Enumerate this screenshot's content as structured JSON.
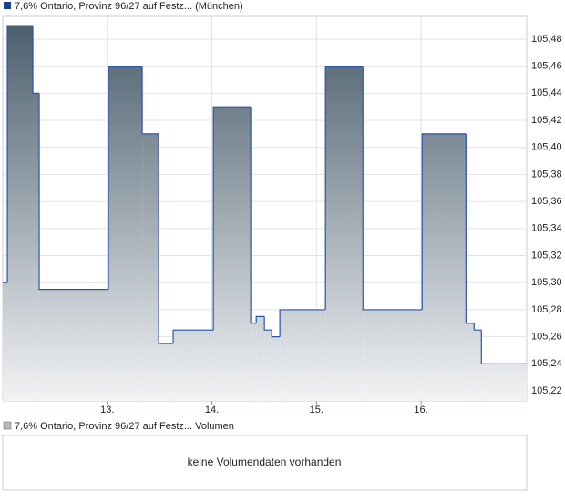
{
  "chart_data": {
    "type": "step-area",
    "legend": "7,6% Ontario, Provinz 96/27 auf Festz... (München)",
    "legend_color": "#1f3f8f",
    "line_color": "#2a55a8",
    "fill_top": "#485c6b",
    "fill_bottom": "#f2f3f5",
    "x": [
      12.0,
      12.044,
      12.288,
      12.349,
      13.011,
      13.334,
      13.491,
      13.63,
      14.014,
      14.371,
      14.424,
      14.502,
      14.572,
      14.65,
      15.086,
      15.444,
      16.01,
      16.429,
      16.507,
      16.577
    ],
    "values": [
      105.3,
      105.49,
      105.44,
      105.295,
      105.46,
      105.41,
      105.255,
      105.265,
      105.43,
      105.27,
      105.275,
      105.265,
      105.26,
      105.28,
      105.46,
      105.28,
      105.41,
      105.27,
      105.265,
      105.24
    ],
    "xlim": [
      12.0,
      17.01
    ],
    "ylim": [
      105.2126,
      105.4968
    ],
    "xticks": [
      {
        "value": 13,
        "label": "13."
      },
      {
        "value": 14,
        "label": "14."
      },
      {
        "value": 15,
        "label": "15."
      },
      {
        "value": 16,
        "label": "16."
      }
    ],
    "yticks": [
      {
        "value": 105.22,
        "label": "105,22"
      },
      {
        "value": 105.24,
        "label": "105,24"
      },
      {
        "value": 105.26,
        "label": "105,26"
      },
      {
        "value": 105.28,
        "label": "105,28"
      },
      {
        "value": 105.3,
        "label": "105,30"
      },
      {
        "value": 105.32,
        "label": "105,32"
      },
      {
        "value": 105.34,
        "label": "105,34"
      },
      {
        "value": 105.36,
        "label": "105,36"
      },
      {
        "value": 105.38,
        "label": "105,38"
      },
      {
        "value": 105.4,
        "label": "105,40"
      },
      {
        "value": 105.42,
        "label": "105,42"
      },
      {
        "value": 105.44,
        "label": "105,44"
      },
      {
        "value": 105.46,
        "label": "105,46"
      },
      {
        "value": 105.48,
        "label": "105,48"
      }
    ],
    "grid": true
  },
  "volume_panel": {
    "legend": "7,6% Ontario, Provinz 96/27 auf Festz... Volumen",
    "legend_color": "#b8b8b8",
    "message": "keine Volumendaten vorhanden"
  }
}
